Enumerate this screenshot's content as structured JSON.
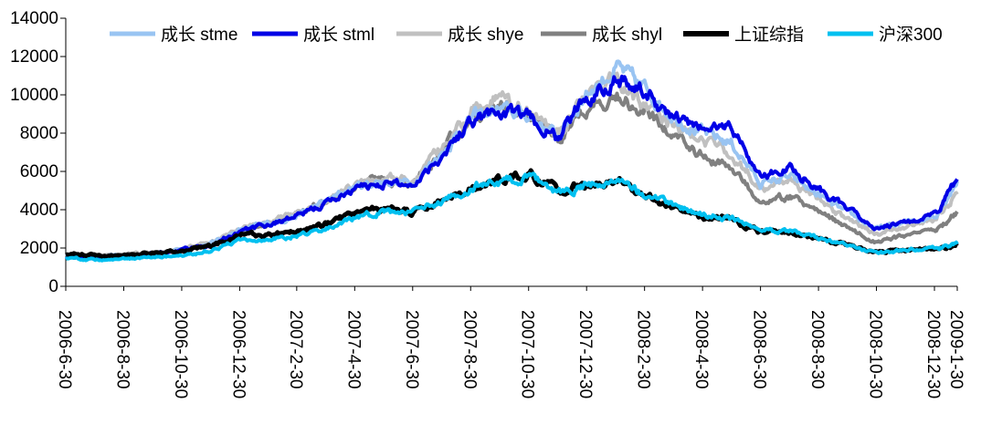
{
  "chart_data": {
    "type": "line",
    "title": "",
    "xlabel": "",
    "ylabel": "",
    "ylim": [
      0,
      14000
    ],
    "yticks": [
      0,
      2000,
      4000,
      6000,
      8000,
      10000,
      12000,
      14000
    ],
    "grid": false,
    "legend_position": "top",
    "x_dates": [
      "2006-06-30",
      "2006-07-31",
      "2006-08-31",
      "2006-09-29",
      "2006-10-31",
      "2006-11-30",
      "2006-12-29",
      "2007-01-31",
      "2007-02-28",
      "2007-03-30",
      "2007-04-30",
      "2007-05-31",
      "2007-06-29",
      "2007-07-31",
      "2007-08-31",
      "2007-09-28",
      "2007-10-31",
      "2007-11-30",
      "2007-12-28",
      "2008-01-31",
      "2008-02-29",
      "2008-03-31",
      "2008-04-30",
      "2008-05-30",
      "2008-06-30",
      "2008-07-31",
      "2008-08-29",
      "2008-09-26",
      "2008-10-31",
      "2008-11-28",
      "2008-12-31",
      "2009-01-23"
    ],
    "x_tick_labels": [
      "2006-6-30",
      "2006-8-30",
      "2006-10-30",
      "2006-12-30",
      "2007-2-30",
      "2007-4-30",
      "2007-6-30",
      "2007-8-30",
      "2007-10-30",
      "2007-12-30",
      "2008-2-30",
      "2008-4-30",
      "2008-6-30",
      "2008-8-30",
      "2008-10-30",
      "2008-12-30",
      "2009-1-30"
    ],
    "series": [
      {
        "name": "成长 stme",
        "color": "#99c4f2",
        "width": 4,
        "values": [
          1600,
          1520,
          1620,
          1720,
          1900,
          2250,
          2900,
          3300,
          3700,
          4400,
          5200,
          5500,
          5400,
          7000,
          8800,
          9200,
          8900,
          7800,
          10000,
          11400,
          10300,
          8900,
          8000,
          7500,
          5400,
          5700,
          4800,
          3900,
          3000,
          3300,
          3700,
          5500
        ]
      },
      {
        "name": "成长 stml",
        "color": "#0000e6",
        "width": 4,
        "values": [
          1580,
          1500,
          1600,
          1700,
          1880,
          2200,
          2850,
          3250,
          3650,
          4300,
          5100,
          5400,
          5300,
          6900,
          8700,
          9100,
          8800,
          7700,
          9800,
          11000,
          10100,
          8800,
          8200,
          8400,
          5700,
          6200,
          5200,
          4100,
          3000,
          3300,
          3700,
          5600
        ]
      },
      {
        "name": "成长 shye",
        "color": "#c0c0c0",
        "width": 4,
        "values": [
          1620,
          1540,
          1650,
          1760,
          1940,
          2300,
          2950,
          3400,
          3800,
          4500,
          5300,
          5700,
          5500,
          7200,
          9100,
          9800,
          9200,
          7900,
          9800,
          10900,
          9600,
          8400,
          7500,
          7000,
          5100,
          5500,
          4500,
          3600,
          2700,
          3100,
          3500,
          4800
        ]
      },
      {
        "name": "成长 shyl",
        "color": "#808080",
        "width": 4,
        "values": [
          1600,
          1520,
          1620,
          1720,
          1900,
          2250,
          2900,
          3350,
          3700,
          4400,
          5200,
          5600,
          5400,
          7100,
          8900,
          9500,
          9000,
          7800,
          9300,
          9900,
          9000,
          7800,
          6800,
          6200,
          4500,
          4700,
          3900,
          3100,
          2300,
          2600,
          2900,
          3900
        ]
      },
      {
        "name": "上证综指",
        "color": "#000000",
        "width": 5,
        "values": [
          1670,
          1610,
          1620,
          1750,
          1820,
          2100,
          2650,
          2700,
          2850,
          3250,
          3800,
          4100,
          3900,
          4500,
          5200,
          5500,
          5950,
          5000,
          5300,
          5500,
          4700,
          4200,
          3500,
          3550,
          2800,
          2800,
          2450,
          2200,
          1750,
          1900,
          1950,
          2100
        ]
      },
      {
        "name": "沪深300",
        "color": "#00c0f0",
        "width": 4,
        "values": [
          1450,
          1380,
          1420,
          1520,
          1580,
          1850,
          2350,
          2500,
          2650,
          3000,
          3600,
          3900,
          3800,
          4450,
          5200,
          5450,
          5700,
          4900,
          5200,
          5600,
          4800,
          4200,
          3700,
          3600,
          2900,
          2850,
          2500,
          2200,
          1700,
          1900,
          2000,
          2200
        ]
      }
    ]
  }
}
